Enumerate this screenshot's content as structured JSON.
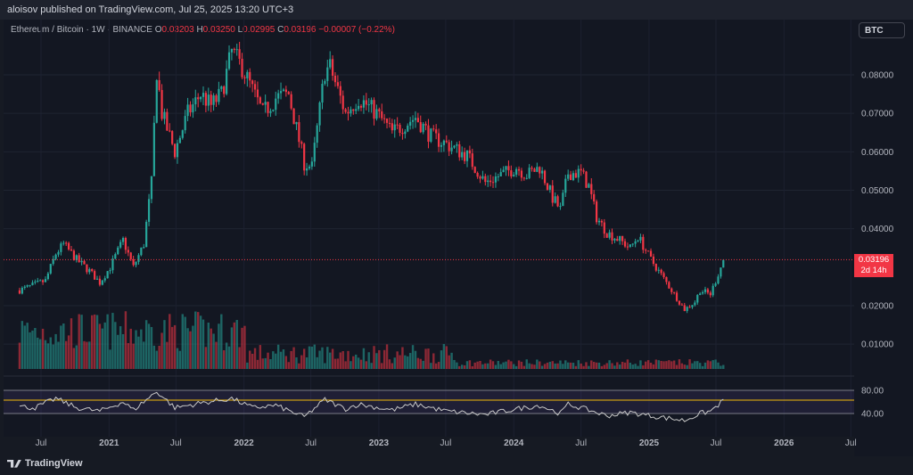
{
  "header": {
    "published": "aloisov published on TradingView.com, Jul 25, 2025 13:20 UTC+3"
  },
  "legend": {
    "symbol": "Ethereum / Bitcoin · 1W · BINANCE",
    "o_label": "O",
    "o_value": "0.03203",
    "h_label": "H",
    "h_value": "0.03250",
    "l_label": "L",
    "l_value": "0.02995",
    "c_label": "C",
    "c_value": "0.03196",
    "change": "−0.00007 (−0.22%)"
  },
  "currency_button": "BTC",
  "last_price": {
    "value": "0.03196",
    "countdown": "2d 14h"
  },
  "brand": "TradingView",
  "colors": {
    "up": "#26a69a",
    "down": "#f23645",
    "rsi_line": "#c8c8c8",
    "rsi_band": "#7e57c2"
  },
  "chart_data": [
    {
      "type": "candlestick",
      "title": "Ethereum / Bitcoin · 1W · BINANCE",
      "ylim": [
        0.005,
        0.089
      ],
      "y_ticks": [
        "0.08000",
        "0.07000",
        "0.06000",
        "0.05000",
        "0.04000",
        "0.02000",
        "0.01000"
      ],
      "x_ticks": [
        "Jul",
        "2021",
        "Jul",
        "2022",
        "Jul",
        "2023",
        "Jul",
        "2024",
        "Jul",
        "2025",
        "Jul",
        "2026",
        "Jul"
      ],
      "x_tick_dates": [
        "2020-07-01",
        "2021-01-01",
        "2021-07-01",
        "2022-01-01",
        "2022-07-01",
        "2023-01-01",
        "2023-07-01",
        "2024-01-01",
        "2024-07-01",
        "2025-01-01",
        "2025-07-01",
        "2026-01-01",
        "2026-07-01"
      ],
      "anchors": [
        [
          "2020-05-04",
          0.024
        ],
        [
          "2020-06-15",
          0.0255
        ],
        [
          "2020-07-13",
          0.0265
        ],
        [
          "2020-08-10",
          0.0335
        ],
        [
          "2020-08-31",
          0.036
        ],
        [
          "2020-10-05",
          0.032
        ],
        [
          "2020-11-09",
          0.029
        ],
        [
          "2020-12-07",
          0.026
        ],
        [
          "2021-01-04",
          0.03
        ],
        [
          "2021-02-08",
          0.037
        ],
        [
          "2021-03-08",
          0.03
        ],
        [
          "2021-04-05",
          0.036
        ],
        [
          "2021-04-26",
          0.052
        ],
        [
          "2021-05-10",
          0.081
        ],
        [
          "2021-05-24",
          0.07
        ],
        [
          "2021-06-28",
          0.06
        ],
        [
          "2021-08-02",
          0.07
        ],
        [
          "2021-09-06",
          0.075
        ],
        [
          "2021-10-04",
          0.072
        ],
        [
          "2021-11-01",
          0.075
        ],
        [
          "2021-11-29",
          0.086
        ],
        [
          "2021-12-27",
          0.082
        ],
        [
          "2022-01-24",
          0.076
        ],
        [
          "2022-02-21",
          0.07
        ],
        [
          "2022-03-28",
          0.074
        ],
        [
          "2022-05-02",
          0.075
        ],
        [
          "2022-06-13",
          0.057
        ],
        [
          "2022-07-04",
          0.056
        ],
        [
          "2022-08-08",
          0.081
        ],
        [
          "2022-08-22",
          0.082
        ],
        [
          "2022-10-03",
          0.07
        ],
        [
          "2022-11-07",
          0.074
        ],
        [
          "2022-12-26",
          0.07
        ],
        [
          "2023-02-06",
          0.065
        ],
        [
          "2023-04-10",
          0.069
        ],
        [
          "2023-05-22",
          0.064
        ],
        [
          "2023-07-03",
          0.062
        ],
        [
          "2023-08-28",
          0.059
        ],
        [
          "2023-10-16",
          0.052
        ],
        [
          "2023-11-27",
          0.054
        ],
        [
          "2024-01-08",
          0.056
        ],
        [
          "2024-02-05",
          0.054
        ],
        [
          "2024-03-11",
          0.056
        ],
        [
          "2024-04-15",
          0.048
        ],
        [
          "2024-05-06",
          0.045
        ],
        [
          "2024-05-27",
          0.0545
        ],
        [
          "2024-07-01",
          0.0545
        ],
        [
          "2024-07-22",
          0.051
        ],
        [
          "2024-08-12",
          0.043
        ],
        [
          "2024-09-09",
          0.039
        ],
        [
          "2024-10-14",
          0.037
        ],
        [
          "2024-11-11",
          0.035
        ],
        [
          "2024-12-02",
          0.038
        ],
        [
          "2025-01-06",
          0.032
        ],
        [
          "2025-02-10",
          0.027
        ],
        [
          "2025-03-10",
          0.023
        ],
        [
          "2025-04-07",
          0.019
        ],
        [
          "2025-05-05",
          0.021
        ],
        [
          "2025-05-19",
          0.024
        ],
        [
          "2025-06-16",
          0.023
        ],
        [
          "2025-07-14",
          0.03
        ],
        [
          "2025-07-21",
          0.032
        ]
      ],
      "rsi": {
        "levels": [
          80,
          40
        ],
        "tick_labels": [
          "80.00",
          "40.00"
        ],
        "ylim": [
          20,
          90
        ],
        "anchors": [
          [
            "2020-05-04",
            52
          ],
          [
            "2020-06-15",
            50
          ],
          [
            "2020-08-10",
            66
          ],
          [
            "2020-10-05",
            50
          ],
          [
            "2020-12-07",
            44
          ],
          [
            "2021-02-08",
            60
          ],
          [
            "2021-03-08",
            46
          ],
          [
            "2021-05-10",
            78
          ],
          [
            "2021-06-28",
            50
          ],
          [
            "2021-09-06",
            58
          ],
          [
            "2021-11-29",
            66
          ],
          [
            "2022-01-24",
            50
          ],
          [
            "2022-03-28",
            54
          ],
          [
            "2022-06-13",
            34
          ],
          [
            "2022-08-08",
            64
          ],
          [
            "2022-10-03",
            48
          ],
          [
            "2022-11-07",
            56
          ],
          [
            "2023-02-06",
            46
          ],
          [
            "2023-04-10",
            56
          ],
          [
            "2023-07-03",
            44
          ],
          [
            "2023-10-16",
            38
          ],
          [
            "2024-01-08",
            48
          ],
          [
            "2024-03-11",
            54
          ],
          [
            "2024-05-06",
            40
          ],
          [
            "2024-05-27",
            56
          ],
          [
            "2024-07-22",
            46
          ],
          [
            "2024-09-09",
            36
          ],
          [
            "2024-11-11",
            42
          ],
          [
            "2025-01-06",
            36
          ],
          [
            "2025-04-07",
            28
          ],
          [
            "2025-05-19",
            40
          ],
          [
            "2025-06-16",
            44
          ],
          [
            "2025-07-21",
            62
          ]
        ]
      }
    }
  ]
}
